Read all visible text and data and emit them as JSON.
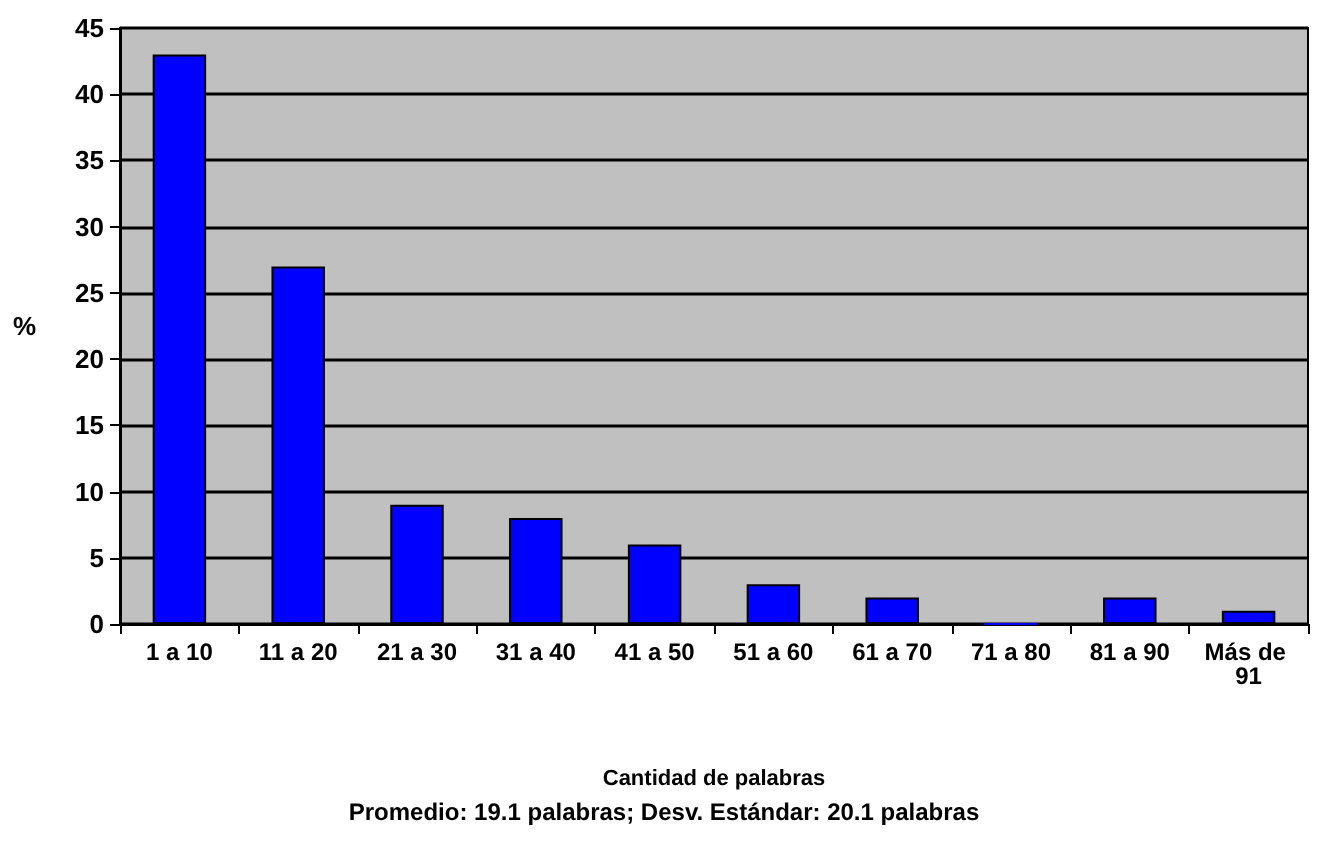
{
  "chart_data": {
    "type": "bar",
    "xlabel": "Cantidad de palabras",
    "ylabel": "%",
    "categories": [
      "1 a 10",
      "11 a 20",
      "21 a 30",
      "31 a 40",
      "41 a 50",
      "51 a 60",
      "61 a 70",
      "71 a 80",
      "81 a 90",
      "Más de 91"
    ],
    "values": [
      43,
      27,
      9,
      8,
      6,
      3,
      2,
      0,
      2,
      1
    ],
    "color": "#0000ff",
    "ylim": [
      0,
      45
    ],
    "yticks": [
      0,
      5,
      10,
      15,
      20,
      25,
      30,
      35,
      40,
      45
    ],
    "grid": "y",
    "annotations": [
      "Promedio: 19.1 palabras; Desv. Estándar: 20.1 palabras"
    ]
  }
}
